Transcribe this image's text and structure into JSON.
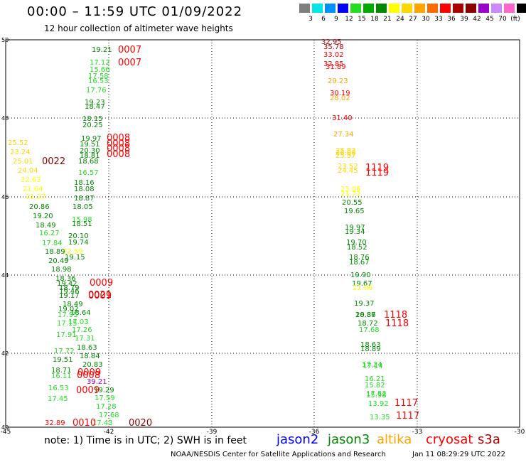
{
  "header": {
    "title": "00:00 – 11:59 UTC 01/09/2022",
    "subtitle": "12 hour collection of altimeter wave heights"
  },
  "legend": {
    "labels": [
      "3",
      "6",
      "9",
      "12",
      "15",
      "18",
      "21",
      "24",
      "27",
      "30",
      "33",
      "36",
      "39",
      "42",
      "45",
      "70",
      "(ft)"
    ],
    "colors": [
      "#7f7f7f",
      "#00e5e5",
      "#0090ff",
      "#0000ff",
      "#22dd22",
      "#00aa00",
      "#008800",
      "#ffff00",
      "#ffd700",
      "#ffa500",
      "#ff6a00",
      "#ff0000",
      "#aa0000",
      "#8b0000",
      "#9900cc",
      "#cc88ff",
      "#ff66cc",
      "#000000"
    ]
  },
  "map": {
    "y_ticks": [
      "50",
      "48",
      "46",
      "44",
      "42",
      "40"
    ],
    "x_ticks": [
      "-45",
      "-42",
      "-39",
      "-36",
      "-33",
      "-30"
    ]
  },
  "observations": {
    "west": [
      {
        "v": "19.21",
        "c": "#008800"
      },
      {
        "v": "17.12",
        "c": "#22dd22"
      },
      {
        "v": "15.66",
        "c": "#22dd22"
      },
      {
        "v": "17.58",
        "c": "#22dd22"
      },
      {
        "v": "16.53",
        "c": "#22dd22"
      },
      {
        "v": "17.76",
        "c": "#22dd22"
      },
      {
        "v": "19.23",
        "c": "#008800"
      },
      {
        "v": "18.47",
        "c": "#008800"
      },
      {
        "v": "18.15",
        "c": "#008800"
      },
      {
        "v": "20.25",
        "c": "#008800"
      },
      {
        "v": "19.97",
        "c": "#008800"
      },
      {
        "v": "19.51",
        "c": "#008800"
      },
      {
        "v": "20.30",
        "c": "#008800"
      },
      {
        "v": "18.81",
        "c": "#008800"
      },
      {
        "v": "18.68",
        "c": "#008800"
      },
      {
        "v": "16.57",
        "c": "#22dd22"
      },
      {
        "v": "18.16",
        "c": "#008800"
      },
      {
        "v": "18.08",
        "c": "#008800"
      },
      {
        "v": "18.87",
        "c": "#008800"
      },
      {
        "v": "18.05",
        "c": "#008800"
      },
      {
        "v": "15.98",
        "c": "#22dd22"
      },
      {
        "v": "18.51",
        "c": "#008800"
      },
      {
        "v": "20.10",
        "c": "#008800"
      },
      {
        "v": "19.74",
        "c": "#008800"
      },
      {
        "v": "22.59",
        "c": "#ffff00"
      },
      {
        "v": "19.15",
        "c": "#008800"
      }
    ],
    "far_west": [
      {
        "v": "25.52",
        "c": "#ffd700"
      },
      {
        "v": "23.24",
        "c": "#ffd700"
      },
      {
        "v": "25.01",
        "c": "#ffd700"
      },
      {
        "v": "24.04",
        "c": "#ffd700"
      },
      {
        "v": "22.63",
        "c": "#ffff00"
      },
      {
        "v": "21.64",
        "c": "#ffff00"
      },
      {
        "v": "21.27",
        "c": "#ffff00"
      },
      {
        "v": "20.86",
        "c": "#008800"
      },
      {
        "v": "19.20",
        "c": "#008800"
      },
      {
        "v": "18.49",
        "c": "#008800"
      },
      {
        "v": "16.27",
        "c": "#22dd22"
      },
      {
        "v": "17.84",
        "c": "#22dd22"
      },
      {
        "v": "18.89",
        "c": "#008800"
      },
      {
        "v": "20.49",
        "c": "#008800"
      },
      {
        "v": "18.98",
        "c": "#008800"
      }
    ],
    "south_west": [
      {
        "v": "18.36",
        "c": "#008800"
      },
      {
        "v": "19.42",
        "c": "#008800"
      },
      {
        "v": "18.79",
        "c": "#008800"
      },
      {
        "v": "19.46",
        "c": "#008800"
      },
      {
        "v": "19.17",
        "c": "#008800"
      },
      {
        "v": "18.49",
        "c": "#008800"
      },
      {
        "v": "19.02",
        "c": "#008800"
      },
      {
        "v": "18.64",
        "c": "#008800"
      },
      {
        "v": "17.95",
        "c": "#22dd22"
      },
      {
        "v": "17.15",
        "c": "#22dd22"
      },
      {
        "v": "17.03",
        "c": "#22dd22"
      },
      {
        "v": "17.26",
        "c": "#22dd22"
      },
      {
        "v": "17.31",
        "c": "#22dd22"
      },
      {
        "v": "17.91",
        "c": "#22dd22"
      },
      {
        "v": "18.63",
        "c": "#008800"
      },
      {
        "v": "17.72",
        "c": "#22dd22"
      },
      {
        "v": "18.84",
        "c": "#008800"
      },
      {
        "v": "19.51",
        "c": "#008800"
      },
      {
        "v": "20.83",
        "c": "#008800"
      },
      {
        "v": "18.71",
        "c": "#008800"
      },
      {
        "v": "16.11",
        "c": "#22dd22"
      },
      {
        "v": "39.21",
        "c": "#9900cc"
      },
      {
        "v": "16.53",
        "c": "#22dd22"
      },
      {
        "v": "19.29",
        "c": "#008800"
      },
      {
        "v": "17.45",
        "c": "#22dd22"
      },
      {
        "v": "17.59",
        "c": "#22dd22"
      },
      {
        "v": "17.28",
        "c": "#22dd22"
      },
      {
        "v": "17.68",
        "c": "#22dd22"
      },
      {
        "v": "17.43",
        "c": "#22dd22"
      },
      {
        "v": "32.89",
        "c": "#ff0000"
      }
    ],
    "east": [
      {
        "v": "32.95",
        "c": "#aa0000"
      },
      {
        "v": "35.78",
        "c": "#aa0000"
      },
      {
        "v": "33.02",
        "c": "#ff0000"
      },
      {
        "v": "32.85",
        "c": "#ff0000"
      },
      {
        "v": "31.89",
        "c": "#ff0000"
      },
      {
        "v": "29.23",
        "c": "#ffa500"
      },
      {
        "v": "30.19",
        "c": "#ff0000"
      },
      {
        "v": "28.02",
        "c": "#ffa500"
      },
      {
        "v": "31.40",
        "c": "#ff0000"
      },
      {
        "v": "27.34",
        "c": "#ffa500"
      },
      {
        "v": "25.83",
        "c": "#ffd700"
      },
      {
        "v": "26.06",
        "c": "#ffd700"
      },
      {
        "v": "25.97",
        "c": "#ffd700"
      },
      {
        "v": "23.52",
        "c": "#ffd700"
      },
      {
        "v": "24.45",
        "c": "#ffd700"
      },
      {
        "v": "23.06",
        "c": "#ffff00"
      },
      {
        "v": "21.72",
        "c": "#ffff00"
      },
      {
        "v": "20.55",
        "c": "#008800"
      },
      {
        "v": "19.65",
        "c": "#008800"
      },
      {
        "v": "19.97",
        "c": "#008800"
      },
      {
        "v": "19.34",
        "c": "#008800"
      },
      {
        "v": "19.70",
        "c": "#008800"
      },
      {
        "v": "18.52",
        "c": "#008800"
      },
      {
        "v": "18.76",
        "c": "#008800"
      },
      {
        "v": "18.67",
        "c": "#008800"
      },
      {
        "v": "19.90",
        "c": "#008800"
      },
      {
        "v": "19.67",
        "c": "#008800"
      },
      {
        "v": "21.96",
        "c": "#ffff00"
      },
      {
        "v": "19.37",
        "c": "#008800"
      },
      {
        "v": "20.86",
        "c": "#008800"
      },
      {
        "v": "18.87",
        "c": "#008800"
      },
      {
        "v": "18.72",
        "c": "#008800"
      },
      {
        "v": "17.68",
        "c": "#22dd22"
      },
      {
        "v": "18.63",
        "c": "#008800"
      },
      {
        "v": "18.89",
        "c": "#008800"
      },
      {
        "v": "17.24",
        "c": "#22dd22"
      },
      {
        "v": "17.14",
        "c": "#22dd22"
      },
      {
        "v": "16.21",
        "c": "#22dd22"
      },
      {
        "v": "15.82",
        "c": "#22dd22"
      },
      {
        "v": "17.82",
        "c": "#22dd22"
      },
      {
        "v": "15.98",
        "c": "#22dd22"
      },
      {
        "v": "13.92",
        "c": "#22dd22"
      },
      {
        "v": "13.35",
        "c": "#22dd22"
      }
    ]
  },
  "time_labels": [
    {
      "v": "0007",
      "c": "#ff0000"
    },
    {
      "v": "0007",
      "c": "#ff0000"
    },
    {
      "v": "0008",
      "c": "#ff0000"
    },
    {
      "v": "0008",
      "c": "#ff0000"
    },
    {
      "v": "0008",
      "c": "#ff0000"
    },
    {
      "v": "0008",
      "c": "#ff0000"
    },
    {
      "v": "0022",
      "c": "#8b0000"
    },
    {
      "v": "0009",
      "c": "#ff0000"
    },
    {
      "v": "0021",
      "c": "#aa0000"
    },
    {
      "v": "0009",
      "c": "#ff0000"
    },
    {
      "v": "0009",
      "c": "#ff0000"
    },
    {
      "v": "0008",
      "c": "#ff0000"
    },
    {
      "v": "0009",
      "c": "#ff0000"
    },
    {
      "v": "0010",
      "c": "#ff0000"
    },
    {
      "v": "0020",
      "c": "#8b0000"
    },
    {
      "v": "1119",
      "c": "#ff0000"
    },
    {
      "v": "1119",
      "c": "#ff0000"
    },
    {
      "v": "1118",
      "c": "#ff0000"
    },
    {
      "v": "1118",
      "c": "#ff0000"
    },
    {
      "v": "1117",
      "c": "#ff0000"
    },
    {
      "v": "1117",
      "c": "#ff0000"
    }
  ],
  "footer": {
    "note": "note: 1) Time is in UTC; 2) SWH is in feet",
    "satellites": [
      {
        "name": "jason2",
        "color": "#0000ff"
      },
      {
        "name": "jason3",
        "color": "#008800"
      },
      {
        "name": "altika",
        "color": "#ffa500"
      },
      {
        "name": "cryosat",
        "color": "#ff0000"
      },
      {
        "name": "s3a",
        "color": "#aa0000"
      }
    ],
    "credit": "NOAA/NESDIS Center for Satellite Applications and Research",
    "timestamp": "Jan 11 08:29:29 UTC 2022"
  }
}
